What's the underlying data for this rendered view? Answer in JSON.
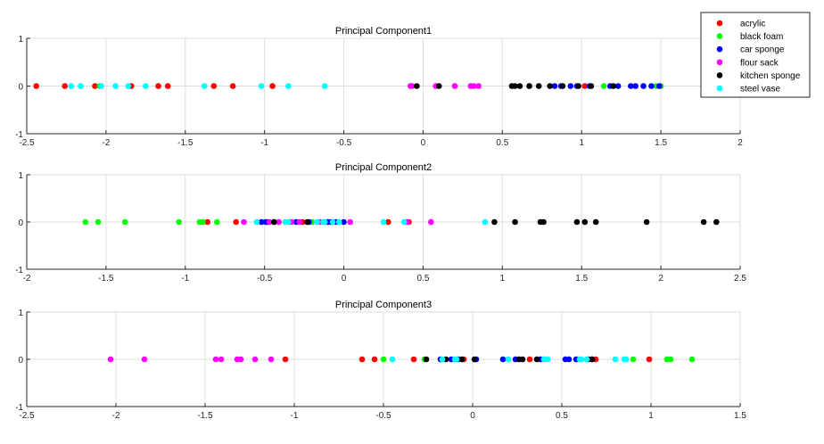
{
  "chart_data": {
    "type": "scatter",
    "grid": true,
    "legend_placement": "top-right",
    "legend": [
      {
        "name": "acrylic",
        "color": "#ff0000"
      },
      {
        "name": "black foam",
        "color": "#00ff00"
      },
      {
        "name": "car sponge",
        "color": "#0000ff"
      },
      {
        "name": "flour sack",
        "color": "#ff00ff"
      },
      {
        "name": "kitchen sponge",
        "color": "#000000"
      },
      {
        "name": "steel vase",
        "color": "#00ffff"
      }
    ],
    "subplots": [
      {
        "title": "Principal Component1",
        "xlim": [
          -2.5,
          2
        ],
        "ylim": [
          -1,
          1
        ],
        "xticks": [
          "-2.5",
          "-2",
          "-1.5",
          "-1",
          "-0.5",
          "0",
          "0.5",
          "1",
          "1.5",
          "2"
        ],
        "yticks": [
          "-1",
          "0",
          "1"
        ],
        "series": [
          {
            "name": "acrylic",
            "color": "#ff0000",
            "x": [
              -2.44,
              -2.26,
              -2.07,
              -1.84,
              -1.67,
              -1.61,
              -1.32,
              -1.2,
              -0.95,
              1.02
            ]
          },
          {
            "name": "black foam",
            "color": "#00ff00",
            "x": [
              -2.04,
              0.67,
              1.14,
              1.47,
              1.5
            ]
          },
          {
            "name": "car sponge",
            "color": "#0000ff",
            "x": [
              0.83,
              0.87,
              0.93,
              0.97,
              1.05,
              1.18,
              1.23,
              1.31,
              1.34,
              1.39,
              1.44,
              1.49
            ]
          },
          {
            "name": "flour sack",
            "color": "#ff00ff",
            "x": [
              -0.08,
              -0.07,
              0.08,
              0.2,
              0.3,
              0.32,
              0.35
            ]
          },
          {
            "name": "kitchen sponge",
            "color": "#000000",
            "x": [
              -0.04,
              0.1,
              0.56,
              0.58,
              0.61,
              0.67,
              0.73,
              0.8,
              0.88,
              0.98,
              1.06,
              1.2
            ]
          },
          {
            "name": "steel vase",
            "color": "#00ffff",
            "x": [
              -2.22,
              -2.16,
              -2.03,
              -1.94,
              -1.86,
              -1.75,
              -1.38,
              -1.02,
              -0.85,
              -0.62
            ]
          }
        ]
      },
      {
        "title": "Principal Component2",
        "xlim": [
          -2,
          2.5
        ],
        "ylim": [
          -1,
          1
        ],
        "xticks": [
          "-2",
          "-1.5",
          "-1",
          "-0.5",
          "0",
          "0.5",
          "1",
          "1.5",
          "2",
          "2.5"
        ],
        "yticks": [
          "-1",
          "0",
          "1"
        ],
        "series": [
          {
            "name": "acrylic",
            "color": "#ff0000",
            "x": [
              -0.86,
              -0.68,
              -0.44,
              -0.26,
              -0.1,
              0.28,
              0.41
            ]
          },
          {
            "name": "black foam",
            "color": "#00ff00",
            "x": [
              -1.63,
              -1.55,
              -1.38,
              -1.04,
              -0.91,
              -0.89,
              -0.8,
              -0.5,
              -0.2
            ]
          },
          {
            "name": "car sponge",
            "color": "#0000ff",
            "x": [
              -0.52,
              -0.49,
              -0.48,
              -0.3,
              -0.22,
              -0.1,
              -0.08,
              -0.05,
              0.0
            ]
          },
          {
            "name": "flour sack",
            "color": "#ff00ff",
            "x": [
              -0.63,
              -0.47,
              -0.41,
              -0.33,
              -0.28,
              -0.15,
              0.04,
              0.4,
              0.55
            ]
          },
          {
            "name": "kitchen sponge",
            "color": "#000000",
            "x": [
              -0.44,
              -0.23,
              0.95,
              1.08,
              1.24,
              1.26,
              1.47,
              1.52,
              1.59,
              1.91,
              2.27,
              2.35
            ]
          },
          {
            "name": "steel vase",
            "color": "#00ffff",
            "x": [
              -0.55,
              -0.37,
              -0.35,
              -0.17,
              -0.13,
              -0.12,
              -0.07,
              -0.03,
              0.25,
              0.38,
              0.89
            ]
          }
        ]
      },
      {
        "title": "Principal Component3",
        "xlim": [
          -2.5,
          1.5
        ],
        "ylim": [
          -1,
          1
        ],
        "xticks": [
          "-2.5",
          "-2",
          "-1.5",
          "-1",
          "-0.5",
          "0",
          "0.5",
          "1",
          "1.5"
        ],
        "yticks": [
          "-1",
          "0",
          "1"
        ],
        "series": [
          {
            "name": "acrylic",
            "color": "#ff0000",
            "x": [
              -1.05,
              -0.62,
              -0.55,
              -0.33,
              -0.05,
              0.32,
              0.69,
              0.99
            ]
          },
          {
            "name": "black foam",
            "color": "#00ff00",
            "x": [
              -0.5,
              -0.27,
              0.59,
              0.9,
              1.09,
              1.11,
              1.23
            ]
          },
          {
            "name": "car sponge",
            "color": "#0000ff",
            "x": [
              -0.18,
              -0.12,
              -0.08,
              0.02,
              0.17,
              0.24,
              0.38,
              0.52,
              0.54,
              0.58,
              0.67
            ]
          },
          {
            "name": "flour sack",
            "color": "#ff00ff",
            "x": [
              -2.03,
              -1.84,
              -1.44,
              -1.41,
              -1.32,
              -1.3,
              -1.22,
              -1.13
            ]
          },
          {
            "name": "kitchen sponge",
            "color": "#000000",
            "x": [
              -0.26,
              -0.15,
              -0.06,
              0.01,
              0.26,
              0.28,
              0.36,
              0.4,
              0.65,
              0.67
            ]
          },
          {
            "name": "steel vase",
            "color": "#00ffff",
            "x": [
              -0.45,
              -0.17,
              -0.1,
              -0.09,
              0.2,
              0.4,
              0.42,
              0.6,
              0.61,
              0.64,
              0.8,
              0.85,
              0.86
            ]
          }
        ]
      }
    ]
  }
}
